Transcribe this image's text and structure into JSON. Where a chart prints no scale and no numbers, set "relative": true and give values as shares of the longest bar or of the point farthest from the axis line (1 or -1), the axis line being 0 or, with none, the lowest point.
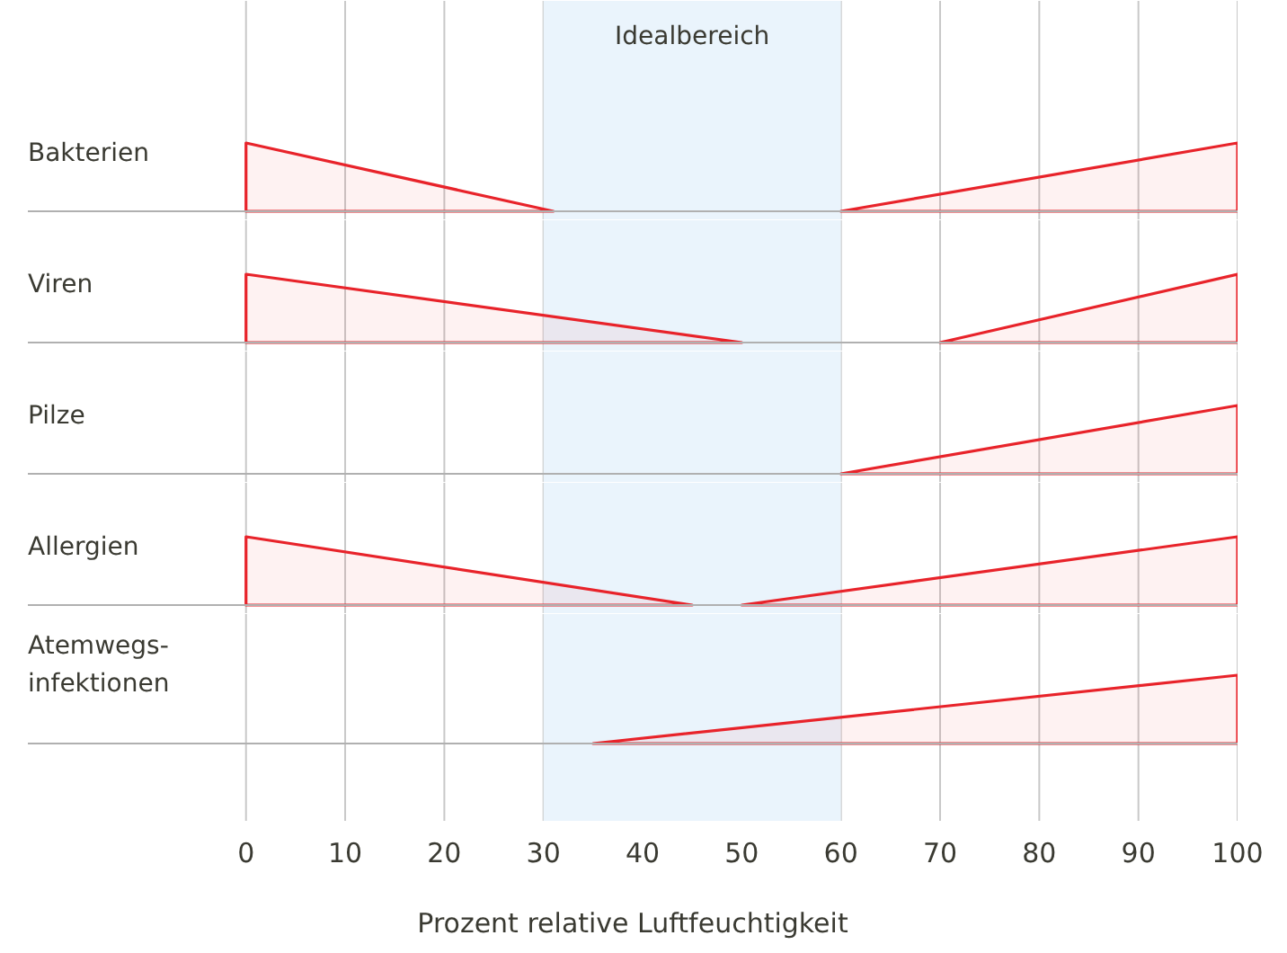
{
  "chart_data": [
    {
      "type": "area",
      "title": "Bakterien",
      "relative": true,
      "xlim": [
        -22,
        100
      ],
      "xticks": [
        0,
        10,
        20,
        30,
        40,
        50,
        60,
        70,
        80,
        90,
        100
      ],
      "tick_labels": false,
      "grid": "x",
      "bands": [
        {
          "axis": "x",
          "from": 30,
          "to": 60,
          "label": "Idealbereich",
          "color": "#eaf4fc"
        }
      ],
      "series": [
        {
          "color": "#e8232a",
          "x": [
            0,
            31
          ],
          "values": [
            1,
            0
          ]
        },
        {
          "color": "#e8232a",
          "x": [
            60,
            100
          ],
          "values": [
            0,
            1
          ]
        }
      ]
    },
    {
      "type": "area",
      "title": "Viren",
      "relative": true,
      "xlim": [
        -22,
        100
      ],
      "xticks": [
        0,
        10,
        20,
        30,
        40,
        50,
        60,
        70,
        80,
        90,
        100
      ],
      "tick_labels": false,
      "grid": "x",
      "bands": [
        {
          "axis": "x",
          "from": 30,
          "to": 60,
          "color": "#eaf4fc"
        }
      ],
      "series": [
        {
          "color": "#e8232a",
          "x": [
            0,
            50
          ],
          "values": [
            1,
            0
          ]
        },
        {
          "color": "#e8232a",
          "x": [
            70,
            100
          ],
          "values": [
            0,
            1
          ]
        }
      ]
    },
    {
      "type": "area",
      "title": "Pilze",
      "relative": true,
      "xlim": [
        -22,
        100
      ],
      "xticks": [
        0,
        10,
        20,
        30,
        40,
        50,
        60,
        70,
        80,
        90,
        100
      ],
      "tick_labels": false,
      "grid": "x",
      "bands": [
        {
          "axis": "x",
          "from": 30,
          "to": 60,
          "color": "#eaf4fc"
        }
      ],
      "series": [
        {
          "color": "#e8232a",
          "x": [
            60,
            100
          ],
          "values": [
            0,
            1
          ]
        }
      ]
    },
    {
      "type": "area",
      "title": "Allergien",
      "relative": true,
      "xlim": [
        -22,
        100
      ],
      "xticks": [
        0,
        10,
        20,
        30,
        40,
        50,
        60,
        70,
        80,
        90,
        100
      ],
      "tick_labels": false,
      "grid": "x",
      "bands": [
        {
          "axis": "x",
          "from": 30,
          "to": 60,
          "color": "#eaf4fc"
        }
      ],
      "series": [
        {
          "color": "#e8232a",
          "x": [
            0,
            45
          ],
          "values": [
            1,
            0
          ]
        },
        {
          "color": "#e8232a",
          "x": [
            50,
            100
          ],
          "values": [
            0,
            1
          ]
        }
      ]
    },
    {
      "type": "area",
      "title": "Atemwegs-\ninfektionen",
      "xlabel": "Prozent relative Luftfeuchtigkeit",
      "relative": true,
      "xlim": [
        -22,
        100
      ],
      "xticks": [
        0,
        10,
        20,
        30,
        40,
        50,
        60,
        70,
        80,
        90,
        100
      ],
      "tick_labels": "x",
      "grid": "x",
      "bands": [
        {
          "axis": "x",
          "from": 30,
          "to": 60,
          "color": "#eaf4fc"
        }
      ],
      "series": [
        {
          "color": "#e8232a",
          "x": [
            35,
            100
          ],
          "values": [
            0,
            1
          ]
        }
      ]
    }
  ]
}
